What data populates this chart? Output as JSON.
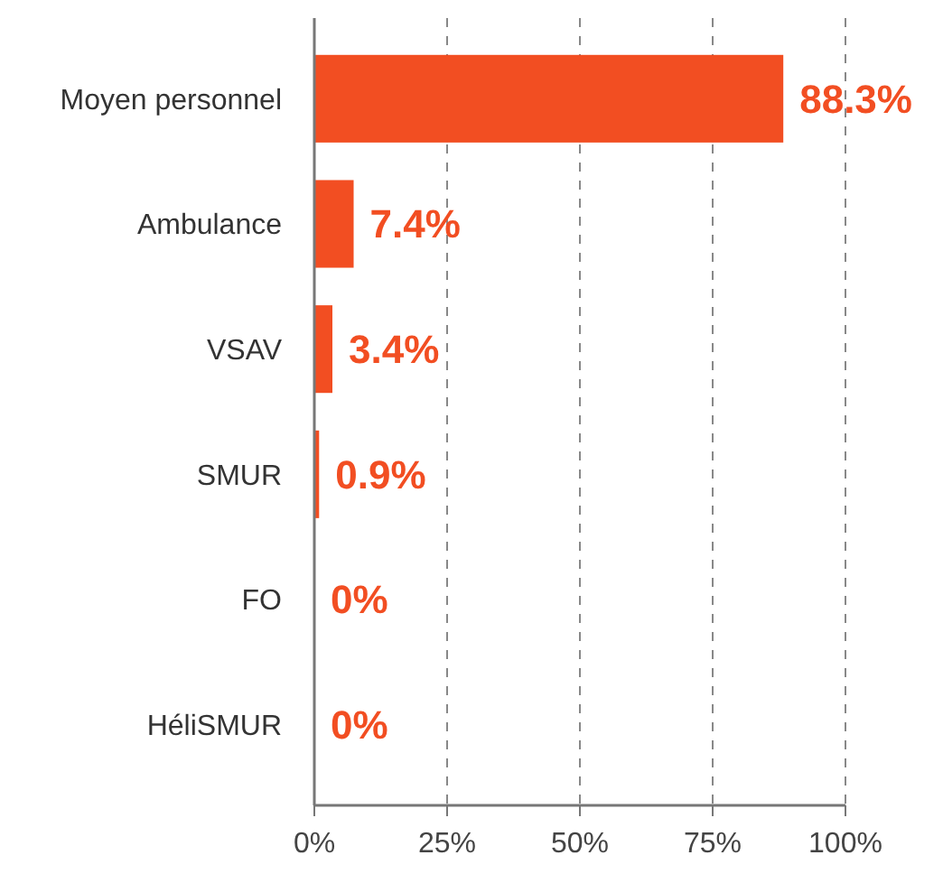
{
  "chart_data": {
    "type": "bar",
    "orientation": "horizontal",
    "categories": [
      "Moyen personnel",
      "Ambulance",
      "VSAV",
      "SMUR",
      "FO",
      "HéliSMUR"
    ],
    "values": [
      88.3,
      7.4,
      3.4,
      0.9,
      0,
      0
    ],
    "color": "#f24e22",
    "value_labels": [
      "88.3%",
      "7.4%",
      "3.4%",
      "0.9%",
      "0%",
      "0%"
    ],
    "xlim": [
      0,
      100
    ],
    "xticks": [
      {
        "value": 0,
        "label": "0%"
      },
      {
        "value": 25,
        "label": "25%"
      },
      {
        "value": 50,
        "label": "50%"
      },
      {
        "value": 75,
        "label": "75%"
      },
      {
        "value": 100,
        "label": "100%"
      }
    ],
    "grid": "x"
  }
}
